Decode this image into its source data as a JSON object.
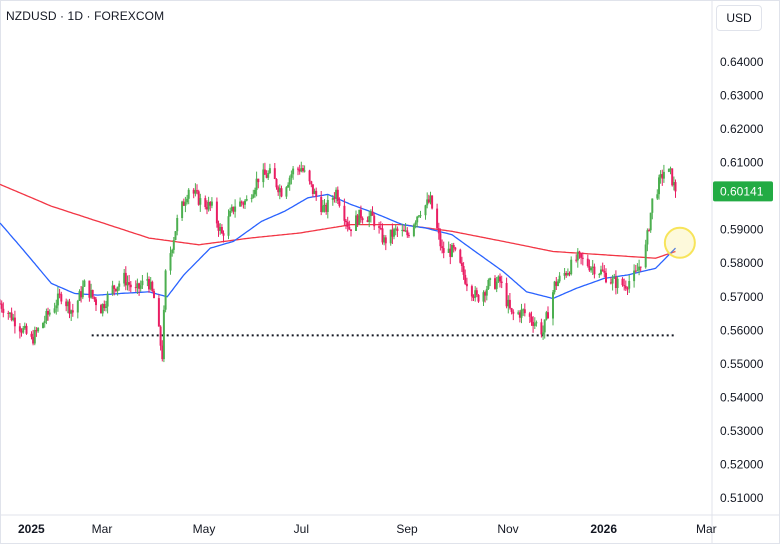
{
  "header": {
    "symbol_title": "NZDUSD · 1D · FOREXCOM"
  },
  "currency_button": {
    "label": "USD"
  },
  "price_label": "0.60141",
  "colors": {
    "up": "#4caf50",
    "down": "#e91e63",
    "ma_fast": "#2962ff",
    "ma_slow": "#f23645",
    "price_tag": "#22ab44",
    "highlight": "#f7e45a",
    "axis_text": "#131722",
    "border": "#e0e3eb"
  },
  "chart_data": {
    "type": "candlestick",
    "instrument": "NZDUSD",
    "interval": "1D",
    "source": "FOREXCOM",
    "ylim": [
      0.505,
      0.6465
    ],
    "y_ticks": [
      "0.51000",
      "0.52000",
      "0.53000",
      "0.54000",
      "0.55000",
      "0.56000",
      "0.57000",
      "0.58000",
      "0.59000",
      "0.60000",
      "0.61000",
      "0.62000",
      "0.63000",
      "0.64000"
    ],
    "x_ticks": [
      {
        "label": "2025",
        "date": "2025-01-01",
        "bold": true
      },
      {
        "label": "Mar",
        "date": "2025-03-01",
        "bold": false
      },
      {
        "label": "May",
        "date": "2025-05-01",
        "bold": false
      },
      {
        "label": "Jul",
        "date": "2025-07-01",
        "bold": false
      },
      {
        "label": "Sep",
        "date": "2025-09-01",
        "bold": false
      },
      {
        "label": "Nov",
        "date": "2025-11-01",
        "bold": false
      },
      {
        "label": "2026",
        "date": "2026-01-01",
        "bold": true
      },
      {
        "label": "Mar",
        "date": "2026-03-01",
        "bold": false
      }
    ],
    "x_range": [
      "2025-01-01",
      "2026-03-01"
    ],
    "last_price": 0.60141,
    "support_level": 0.5585,
    "support_range": [
      "2025-03-01",
      "2026-03-01"
    ],
    "highlight_point": {
      "date": "2026-02-12",
      "price": 0.5855
    },
    "price_anchors": [
      [
        "2025-01-01",
        0.568
      ],
      [
        "2025-01-10",
        0.563
      ],
      [
        "2025-01-20",
        0.557
      ],
      [
        "2025-01-31",
        0.5655
      ],
      [
        "2025-02-07",
        0.5705
      ],
      [
        "2025-02-14",
        0.5655
      ],
      [
        "2025-02-21",
        0.5735
      ],
      [
        "2025-03-03",
        0.5665
      ],
      [
        "2025-03-10",
        0.5725
      ],
      [
        "2025-03-17",
        0.5755
      ],
      [
        "2025-03-24",
        0.5715
      ],
      [
        "2025-03-31",
        0.5755
      ],
      [
        "2025-04-04",
        0.5695
      ],
      [
        "2025-04-09",
        0.5525
      ],
      [
        "2025-04-11",
        0.5765
      ],
      [
        "2025-04-18",
        0.5925
      ],
      [
        "2025-04-25",
        0.6025
      ],
      [
        "2025-05-02",
        0.5985
      ],
      [
        "2025-05-09",
        0.5965
      ],
      [
        "2025-05-15",
        0.5885
      ],
      [
        "2025-05-23",
        0.5975
      ],
      [
        "2025-05-30",
        0.5985
      ],
      [
        "2025-06-06",
        0.6055
      ],
      [
        "2025-06-13",
        0.6065
      ],
      [
        "2025-06-20",
        0.6015
      ],
      [
        "2025-06-27",
        0.6075
      ],
      [
        "2025-07-02",
        0.6085
      ],
      [
        "2025-07-09",
        0.6015
      ],
      [
        "2025-07-16",
        0.5955
      ],
      [
        "2025-07-23",
        0.6015
      ],
      [
        "2025-07-31",
        0.5905
      ],
      [
        "2025-08-07",
        0.5945
      ],
      [
        "2025-08-14",
        0.5935
      ],
      [
        "2025-08-21",
        0.5865
      ],
      [
        "2025-08-28",
        0.5895
      ],
      [
        "2025-09-04",
        0.5885
      ],
      [
        "2025-09-11",
        0.5955
      ],
      [
        "2025-09-18",
        0.5985
      ],
      [
        "2025-09-25",
        0.5835
      ],
      [
        "2025-10-02",
        0.5835
      ],
      [
        "2025-10-09",
        0.5755
      ],
      [
        "2025-10-16",
        0.5695
      ],
      [
        "2025-10-23",
        0.5735
      ],
      [
        "2025-10-30",
        0.5745
      ],
      [
        "2025-11-06",
        0.5645
      ],
      [
        "2025-11-13",
        0.5655
      ],
      [
        "2025-11-20",
        0.5625
      ],
      [
        "2025-11-25",
        0.5595
      ],
      [
        "2025-12-02",
        0.5735
      ],
      [
        "2025-12-09",
        0.5775
      ],
      [
        "2025-12-16",
        0.5815
      ],
      [
        "2025-12-23",
        0.5795
      ],
      [
        "2025-12-30",
        0.5775
      ],
      [
        "2026-01-06",
        0.5745
      ],
      [
        "2026-01-13",
        0.5735
      ],
      [
        "2026-01-20",
        0.5765
      ],
      [
        "2026-01-26",
        0.5845
      ],
      [
        "2026-01-30",
        0.5985
      ],
      [
        "2026-02-06",
        0.6075
      ],
      [
        "2026-02-10",
        0.6065
      ],
      [
        "2026-02-13",
        0.6014
      ]
    ],
    "ma_fast_anchors": [
      [
        "2025-01-01",
        0.592
      ],
      [
        "2025-01-15",
        0.584
      ],
      [
        "2025-02-01",
        0.574
      ],
      [
        "2025-02-15",
        0.571
      ],
      [
        "2025-03-01",
        0.5705
      ],
      [
        "2025-03-15",
        0.571
      ],
      [
        "2025-04-01",
        0.5715
      ],
      [
        "2025-04-12",
        0.57
      ],
      [
        "2025-04-22",
        0.5765
      ],
      [
        "2025-05-08",
        0.5845
      ],
      [
        "2025-05-22",
        0.5865
      ],
      [
        "2025-06-08",
        0.5925
      ],
      [
        "2025-06-22",
        0.5955
      ],
      [
        "2025-07-06",
        0.5995
      ],
      [
        "2025-07-18",
        0.6005
      ],
      [
        "2025-08-01",
        0.5975
      ],
      [
        "2025-08-15",
        0.595
      ],
      [
        "2025-09-01",
        0.5915
      ],
      [
        "2025-09-15",
        0.5905
      ],
      [
        "2025-10-01",
        0.5885
      ],
      [
        "2025-10-15",
        0.5835
      ],
      [
        "2025-11-01",
        0.5775
      ],
      [
        "2025-11-15",
        0.5715
      ],
      [
        "2025-12-01",
        0.5695
      ],
      [
        "2025-12-15",
        0.5725
      ],
      [
        "2026-01-01",
        0.5755
      ],
      [
        "2026-01-15",
        0.5765
      ],
      [
        "2026-02-01",
        0.5785
      ],
      [
        "2026-02-13",
        0.5845
      ]
    ],
    "ma_slow_anchors": [
      [
        "2025-01-01",
        0.6035
      ],
      [
        "2025-02-01",
        0.597
      ],
      [
        "2025-03-01",
        0.5925
      ],
      [
        "2025-04-01",
        0.5875
      ],
      [
        "2025-05-01",
        0.5855
      ],
      [
        "2025-06-01",
        0.5875
      ],
      [
        "2025-07-01",
        0.589
      ],
      [
        "2025-08-01",
        0.5915
      ],
      [
        "2025-09-01",
        0.5915
      ],
      [
        "2025-10-01",
        0.5895
      ],
      [
        "2025-11-01",
        0.5865
      ],
      [
        "2025-12-01",
        0.5835
      ],
      [
        "2026-01-01",
        0.5825
      ],
      [
        "2026-02-01",
        0.5815
      ],
      [
        "2026-02-13",
        0.5835
      ]
    ]
  }
}
